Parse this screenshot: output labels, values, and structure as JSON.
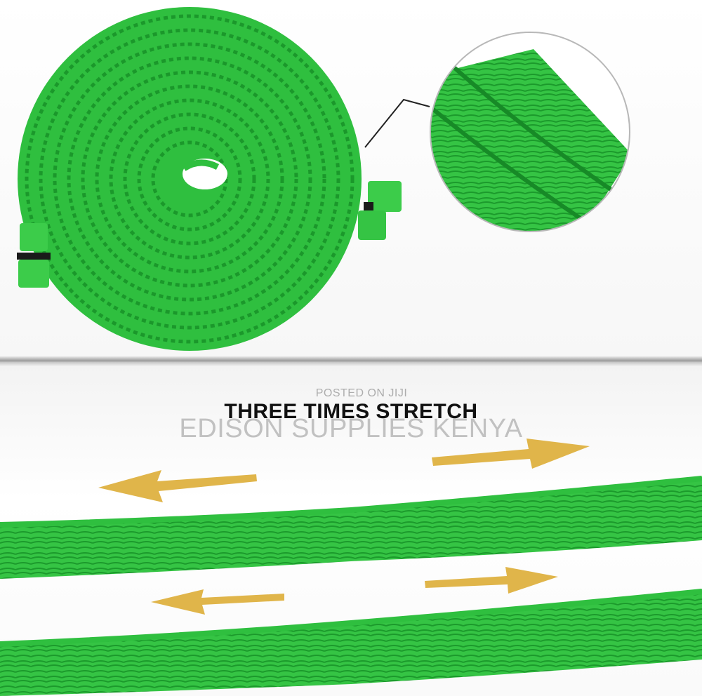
{
  "headline": "THREE TIMES STRETCH",
  "watermark": {
    "line1": "POSTED ON JIJI",
    "line2": "EDISON SUPPLIES KENYA"
  },
  "colors": {
    "hose_green": "#2fbf3f",
    "hose_dark": "#18962a",
    "arrow_gold": "#e0b54a"
  },
  "icons": {
    "zoom_callout": "magnifier-circle-callout",
    "arrows": [
      "arrow-left",
      "arrow-right",
      "arrow-left",
      "arrow-right"
    ]
  }
}
